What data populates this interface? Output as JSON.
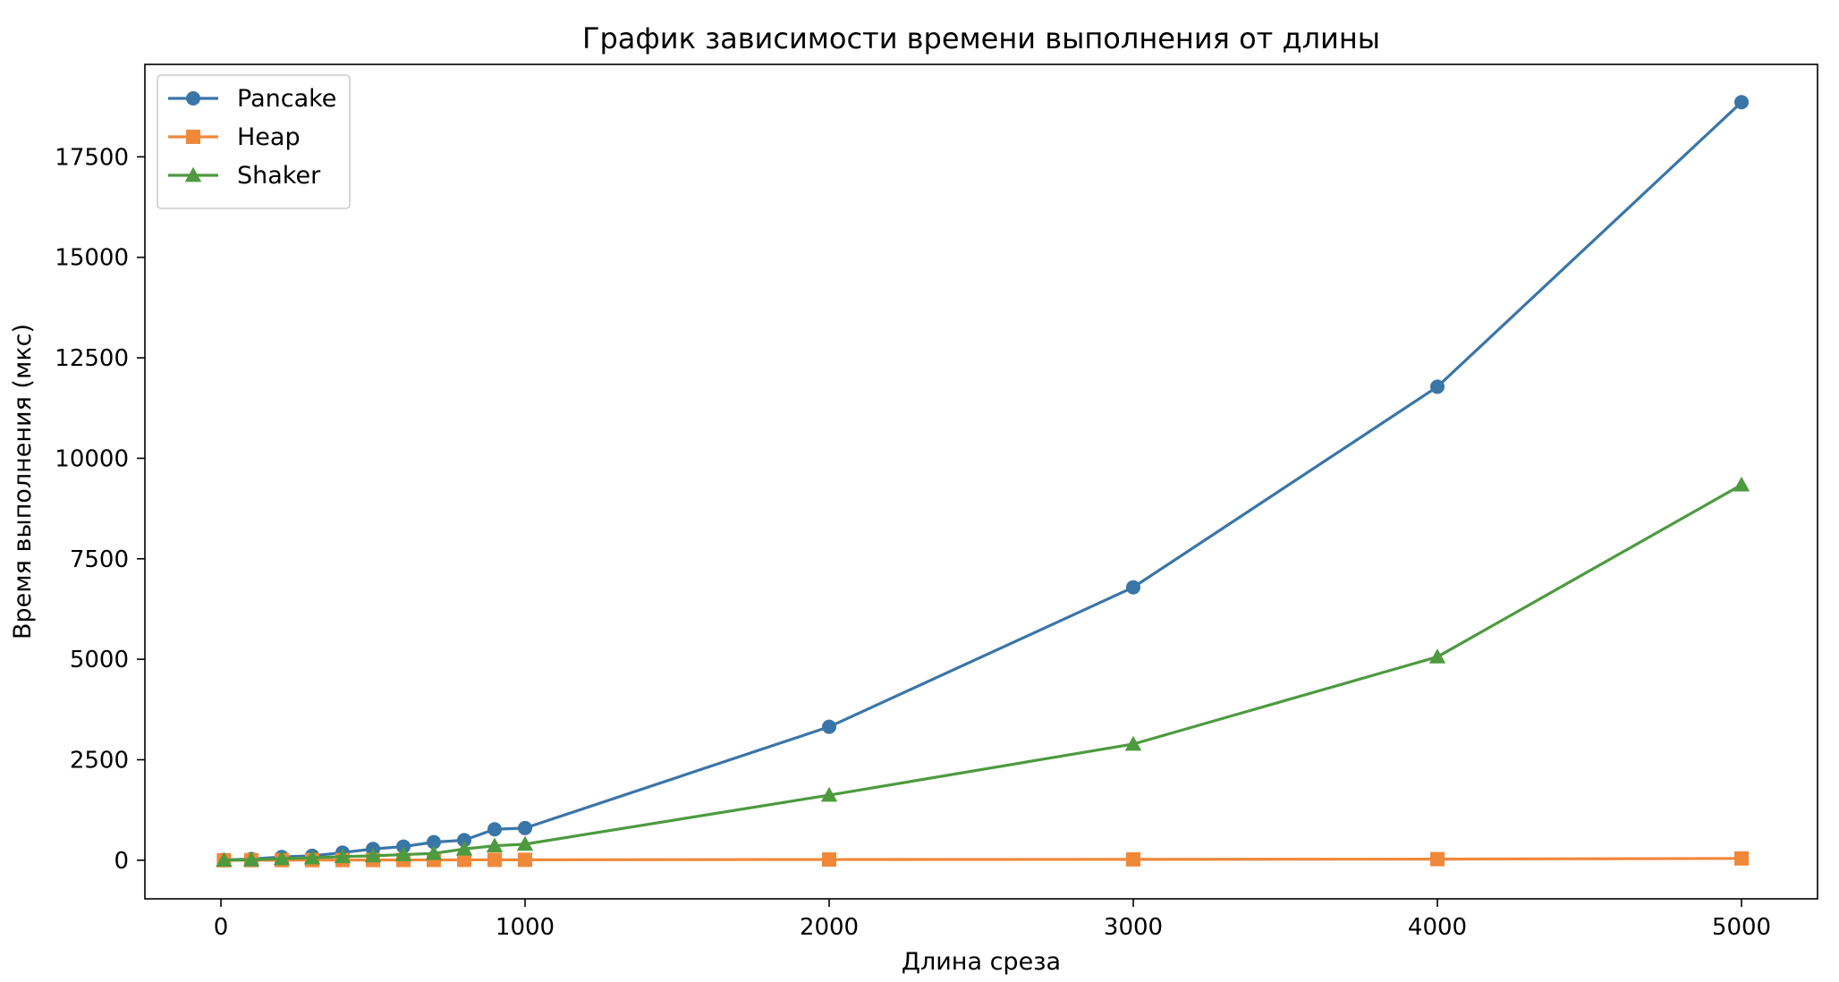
{
  "chart_data": {
    "type": "line",
    "title": "График зависимости времени выполнения от длины",
    "xlabel": "Длина среза",
    "ylabel": "Время выполнения (мкс)",
    "xlim": [
      -250,
      5250
    ],
    "ylim": [
      -960,
      19800
    ],
    "xticks": [
      0,
      1000,
      2000,
      3000,
      4000,
      5000
    ],
    "xtick_labels": [
      "0",
      "1000",
      "2000",
      "3000",
      "4000",
      "5000"
    ],
    "yticks": [
      0,
      2500,
      5000,
      7500,
      10000,
      12500,
      15000,
      17500
    ],
    "ytick_labels": [
      "0",
      "2500",
      "5000",
      "7500",
      "10000",
      "12500",
      "15000",
      "17500"
    ],
    "grid": false,
    "legend_position": "top-left",
    "x": [
      10,
      100,
      200,
      300,
      400,
      500,
      600,
      700,
      800,
      900,
      1000,
      2000,
      3000,
      4000,
      5000
    ],
    "series": [
      {
        "name": "Pancake",
        "color": "#3a75a8",
        "marker": "circle",
        "values": [
          5,
          30,
          80,
          110,
          190,
          280,
          340,
          450,
          500,
          770,
          800,
          3320,
          6790,
          11780,
          18860
        ]
      },
      {
        "name": "Heap",
        "color": "#f0883a",
        "marker": "square",
        "values": [
          0,
          2,
          3,
          4,
          5,
          6,
          7,
          8,
          9,
          10,
          11,
          18,
          22,
          28,
          45
        ]
      },
      {
        "name": "Shaker",
        "color": "#4d9a3f",
        "marker": "triangle",
        "values": [
          2,
          10,
          40,
          60,
          90,
          110,
          140,
          170,
          280,
          360,
          400,
          1620,
          2890,
          5060,
          9340
        ]
      }
    ]
  }
}
